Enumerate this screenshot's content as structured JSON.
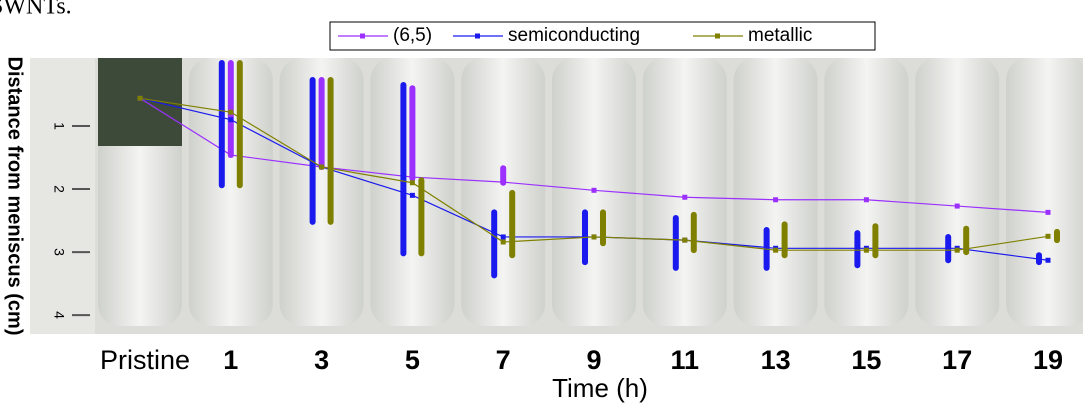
{
  "chart_data": {
    "type": "line",
    "caption_fragment": "SWNTs.",
    "xlabel": "Time (h)",
    "ylabel": "Distance from meniscus (cm)",
    "categories": [
      "Pristine",
      "1",
      "3",
      "5",
      "7",
      "9",
      "11",
      "13",
      "15",
      "17",
      "19"
    ],
    "ylim": [
      0,
      4.3
    ],
    "yticks": [
      1,
      2,
      3,
      4
    ],
    "y_inverted": true,
    "legend_position": "top",
    "series": [
      {
        "name": "(6,5)",
        "color": "#9b30ff",
        "values": [
          0.56,
          1.46,
          1.65,
          1.81,
          1.89,
          2.02,
          2.13,
          2.17,
          2.17,
          2.27,
          2.37
        ],
        "bar_low": [
          null,
          0,
          0.27,
          0.4,
          1.67,
          null,
          null,
          null,
          null,
          null,
          null
        ],
        "bar_high": [
          null,
          1.46,
          1.65,
          1.83,
          1.9,
          null,
          null,
          null,
          null,
          null,
          null
        ]
      },
      {
        "name": "semiconducting",
        "color": "#1a1aee",
        "values": [
          0.56,
          0.9,
          1.65,
          2.1,
          2.76,
          2.76,
          2.81,
          2.94,
          2.94,
          2.94,
          3.13
        ],
        "bar_low": [
          null,
          0,
          0.27,
          0.35,
          2.37,
          2.37,
          2.46,
          2.65,
          2.7,
          2.76,
          3.05
        ],
        "bar_high": [
          null,
          1.94,
          2.52,
          3.02,
          3.37,
          3.16,
          3.25,
          3.25,
          3.21,
          3.13,
          3.16
        ]
      },
      {
        "name": "metallic",
        "color": "#808000",
        "values": [
          0.56,
          0.78,
          1.65,
          1.9,
          2.84,
          2.76,
          2.81,
          2.97,
          2.97,
          2.97,
          2.75
        ],
        "bar_low": [
          null,
          0,
          0.27,
          1.86,
          2.06,
          2.37,
          2.41,
          2.56,
          2.59,
          2.63,
          2.68
        ],
        "bar_high": [
          null,
          1.94,
          2.52,
          3.02,
          3.05,
          2.86,
          2.97,
          3.05,
          3.05,
          3,
          2.81
        ]
      }
    ]
  }
}
